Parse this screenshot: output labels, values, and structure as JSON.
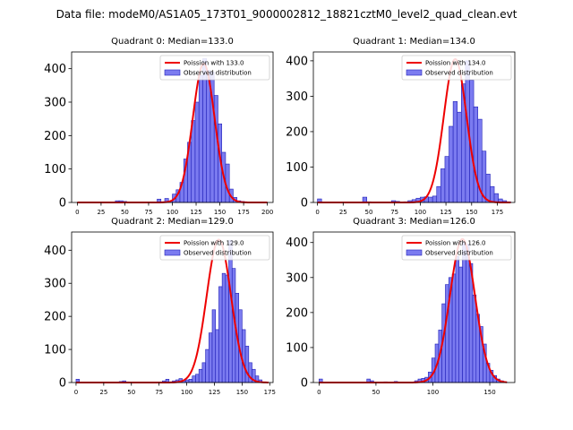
{
  "figure": {
    "suptitle": "Data file: modeM0/AS1A05_173T01_9000002812_18821cztM0_level2_quad_clean.evt"
  },
  "colors": {
    "bar_fill": "#7b7bf0",
    "bar_edge": "#2020b8",
    "fit_line": "#ee0000",
    "axes": "#000000"
  },
  "chart_data": [
    {
      "type": "bar",
      "title": "Quadrant 0: Median=133.0",
      "xlim": [
        -6,
        206
      ],
      "ylim": [
        0,
        450
      ],
      "xticks": [
        0,
        25,
        50,
        75,
        100,
        125,
        150,
        175,
        200
      ],
      "yticks": [
        0,
        100,
        200,
        300,
        400
      ],
      "legend": [
        "Poission with 133.0",
        "Observed distribution"
      ],
      "legend_position": "top-right",
      "bin_width": 4,
      "bin_start": 0,
      "values": [
        0,
        0,
        0,
        0,
        0,
        0,
        0,
        0,
        0,
        0,
        5,
        5,
        3,
        0,
        0,
        0,
        0,
        0,
        0,
        0,
        0,
        10,
        2,
        12,
        4,
        25,
        38,
        60,
        130,
        180,
        245,
        300,
        380,
        430,
        395,
        390,
        320,
        235,
        150,
        115,
        40,
        15,
        5,
        3,
        0,
        0,
        0,
        0,
        0,
        0
      ],
      "fit_mean": 133.0,
      "fit_sigma": 11.5,
      "fit_peak": 415
    },
    {
      "type": "bar",
      "title": "Quadrant 1: Median=134.0",
      "xlim": [
        -4,
        192
      ],
      "ylim": [
        0,
        425
      ],
      "xticks": [
        0,
        25,
        50,
        75,
        100,
        125,
        150,
        175
      ],
      "yticks": [
        0,
        100,
        200,
        300,
        400
      ],
      "legend": [
        "Poission with 134.0",
        "Observed distribution"
      ],
      "legend_position": "top-right",
      "bin_width": 4,
      "bin_start": 0,
      "values": [
        10,
        0,
        0,
        0,
        0,
        0,
        0,
        0,
        0,
        0,
        0,
        15,
        2,
        0,
        0,
        0,
        0,
        0,
        5,
        3,
        0,
        2,
        5,
        8,
        12,
        15,
        16,
        15,
        18,
        45,
        95,
        130,
        215,
        285,
        255,
        335,
        400,
        345,
        270,
        235,
        145,
        80,
        45,
        25,
        10,
        5,
        2
      ],
      "fit_mean": 134.0,
      "fit_sigma": 11.0,
      "fit_peak": 405
    },
    {
      "type": "bar",
      "title": "Quadrant 2: Median=129.0",
      "xlim": [
        -4,
        178
      ],
      "ylim": [
        0,
        455
      ],
      "xticks": [
        0,
        25,
        50,
        75,
        100,
        125,
        150,
        175
      ],
      "yticks": [
        0,
        100,
        200,
        300,
        400
      ],
      "legend": [
        "Poission with 129.0",
        "Observed distribution"
      ],
      "legend_position": "top-right",
      "bin_width": 3,
      "bin_start": 0,
      "values": [
        10,
        0,
        0,
        0,
        0,
        0,
        0,
        0,
        0,
        0,
        0,
        0,
        0,
        3,
        5,
        2,
        0,
        0,
        0,
        0,
        0,
        0,
        0,
        0,
        0,
        0,
        5,
        10,
        2,
        5,
        8,
        12,
        5,
        8,
        10,
        20,
        25,
        40,
        60,
        100,
        150,
        220,
        160,
        290,
        330,
        325,
        430,
        345,
        270,
        220,
        160,
        110,
        60,
        40,
        20,
        8,
        2,
        0
      ],
      "fit_mean": 129.0,
      "fit_sigma": 11.0,
      "fit_peak": 432
    },
    {
      "type": "bar",
      "title": "Quadrant 3: Median=126.0",
      "xlim": [
        -5,
        172
      ],
      "ylim": [
        0,
        430
      ],
      "xticks": [
        0,
        50,
        100,
        150
      ],
      "yticks": [
        0,
        100,
        200,
        300,
        400
      ],
      "legend": [
        "Poission with 126.0",
        "Observed distribution"
      ],
      "legend_position": "top-right",
      "bin_width": 3,
      "bin_start": 0,
      "values": [
        10,
        0,
        0,
        0,
        0,
        0,
        0,
        0,
        0,
        0,
        0,
        0,
        0,
        0,
        10,
        5,
        0,
        0,
        0,
        2,
        0,
        0,
        3,
        0,
        0,
        0,
        0,
        0,
        5,
        10,
        12,
        15,
        30,
        70,
        110,
        150,
        225,
        280,
        300,
        310,
        360,
        330,
        400,
        395,
        340,
        250,
        195,
        160,
        110,
        55,
        35,
        20,
        10,
        5,
        2
      ],
      "fit_mean": 126.0,
      "fit_sigma": 11.0,
      "fit_peak": 410
    }
  ]
}
